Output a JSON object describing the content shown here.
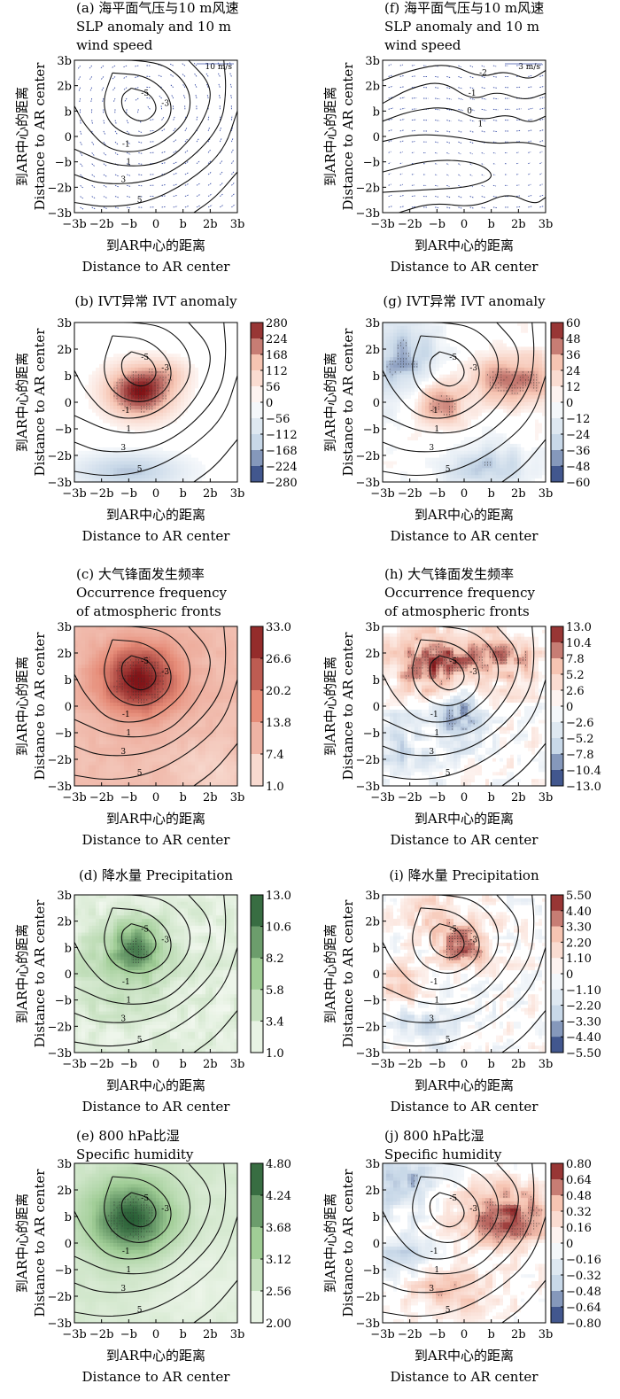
{
  "chart_data": [
    {
      "type": "contour",
      "title": [
        "(a) 海平面气压与10 m风速",
        "SLP anomaly and 10 m",
        "wind speed"
      ],
      "xlabel": [
        "到AR中心的距离",
        "Distance to AR center"
      ],
      "ylabel": [
        "到AR中心的距离",
        "Distance to AR center"
      ],
      "x_ticks": [
        "−3b",
        "−2b",
        "−b",
        "0",
        "b",
        "2b",
        "3b"
      ],
      "y_ticks": [
        "3b",
        "2b",
        "b",
        "0",
        "−b",
        "−2b",
        "−3b"
      ],
      "vector_reference": "10 m/s",
      "contour_labels": [
        "-5",
        "-3",
        "-1",
        "1",
        "3",
        "5"
      ],
      "colorbar": null
    },
    {
      "type": "contour",
      "title": [
        "(f) 海平面气压与10 m风速",
        "SLP anomaly and 10 m",
        "wind speed"
      ],
      "xlabel": [
        "到AR中心的距离",
        "Distance to AR center"
      ],
      "ylabel": [
        "到AR中心的距离",
        "Distance to AR center"
      ],
      "x_ticks": [
        "−3b",
        "−2b",
        "−b",
        "0",
        "b",
        "2b",
        "3b"
      ],
      "y_ticks": [
        "3b",
        "2b",
        "b",
        "0",
        "−b",
        "−2b",
        "−3b"
      ],
      "vector_reference": "3 m/s",
      "contour_labels": [
        "-2",
        "-1",
        "0",
        "1"
      ],
      "colorbar": null
    },
    {
      "type": "heatmap",
      "title": [
        "(b) IVT异常 IVT anomaly"
      ],
      "xlabel": [
        "到AR中心的距离",
        "Distance to AR center"
      ],
      "ylabel": [
        "到AR中心的距离",
        "Distance to AR center"
      ],
      "x_ticks": [
        "−3b",
        "−2b",
        "−b",
        "0",
        "b",
        "2b",
        "3b"
      ],
      "y_ticks": [
        "3b",
        "2b",
        "b",
        "0",
        "−b",
        "−2b",
        "−3b"
      ],
      "contour_labels": [
        "-5",
        "-3",
        "-1",
        "1",
        "3",
        "5"
      ],
      "colorbar": {
        "palette": "diverging",
        "range": [
          -280,
          280
        ],
        "ticks": [
          "280",
          "224",
          "168",
          "112",
          "56",
          "0",
          "−56",
          "−112",
          "−168",
          "−224",
          "−280"
        ]
      }
    },
    {
      "type": "heatmap",
      "title": [
        "(g) IVT异常 IVT anomaly"
      ],
      "xlabel": [
        "到AR中心的距离",
        "Distance to AR center"
      ],
      "ylabel": [
        "到AR中心的距离",
        "Distance to AR center"
      ],
      "x_ticks": [
        "−3b",
        "−2b",
        "−b",
        "0",
        "b",
        "2b",
        "3b"
      ],
      "y_ticks": [
        "3b",
        "2b",
        "b",
        "0",
        "−b",
        "−2b",
        "−3b"
      ],
      "contour_labels": [
        "-5",
        "-3",
        "-1",
        "1",
        "3",
        "5"
      ],
      "colorbar": {
        "palette": "diverging",
        "range": [
          -60,
          60
        ],
        "ticks": [
          "60",
          "48",
          "36",
          "24",
          "12",
          "0",
          "−12",
          "−24",
          "−36",
          "−48",
          "−60"
        ]
      }
    },
    {
      "type": "heatmap",
      "title": [
        "(c) 大气锋面发生频率",
        "Occurrence frequency",
        "of atmospheric fronts"
      ],
      "xlabel": [
        "到AR中心的距离",
        "Distance to AR center"
      ],
      "ylabel": [
        "到AR中心的距离",
        "Distance to AR center"
      ],
      "x_ticks": [
        "−3b",
        "−2b",
        "−b",
        "0",
        "b",
        "2b",
        "3b"
      ],
      "y_ticks": [
        "3b",
        "2b",
        "b",
        "0",
        "−b",
        "−2b",
        "−3b"
      ],
      "contour_labels": [
        "-5",
        "-3",
        "-1",
        "1",
        "3",
        "5"
      ],
      "colorbar": {
        "palette": "reds",
        "range": [
          1.0,
          33.0
        ],
        "ticks": [
          "33.0",
          "26.6",
          "20.2",
          "13.8",
          "7.4",
          "1.0"
        ]
      }
    },
    {
      "type": "heatmap",
      "title": [
        "(h) 大气锋面发生频率",
        "Occurrence frequency",
        "of atmospheric fronts"
      ],
      "xlabel": [
        "到AR中心的距离",
        "Distance to AR center"
      ],
      "ylabel": [
        "到AR中心的距离",
        "Distance to AR center"
      ],
      "x_ticks": [
        "−3b",
        "−2b",
        "−b",
        "0",
        "b",
        "2b",
        "3b"
      ],
      "y_ticks": [
        "3b",
        "2b",
        "b",
        "0",
        "−b",
        "−2b",
        "−3b"
      ],
      "contour_labels": [
        "-5",
        "-3",
        "-1",
        "1",
        "3",
        "5"
      ],
      "colorbar": {
        "palette": "diverging",
        "range": [
          -13.0,
          13.0
        ],
        "ticks": [
          "13.0",
          "10.4",
          "7.8",
          "5.2",
          "2.6",
          "0",
          "−2.6",
          "−5.2",
          "−7.8",
          "−10.4",
          "−13.0"
        ]
      }
    },
    {
      "type": "heatmap",
      "title": [
        "(d) 降水量 Precipitation"
      ],
      "xlabel": [
        "到AR中心的距离",
        "Distance to AR center"
      ],
      "ylabel": [
        "到AR中心的距离",
        "Distance to AR center"
      ],
      "x_ticks": [
        "−3b",
        "−2b",
        "−b",
        "0",
        "b",
        "2b",
        "3b"
      ],
      "y_ticks": [
        "3b",
        "2b",
        "b",
        "0",
        "−b",
        "−2b",
        "−3b"
      ],
      "contour_labels": [
        "-5",
        "-3",
        "-1",
        "1",
        "3",
        "5"
      ],
      "colorbar": {
        "palette": "greens",
        "range": [
          1.0,
          13.0
        ],
        "ticks": [
          "13.0",
          "10.6",
          "8.2",
          "5.8",
          "3.4",
          "1.0"
        ]
      }
    },
    {
      "type": "heatmap",
      "title": [
        "(i) 降水量 Precipitation"
      ],
      "xlabel": [
        "到AR中心的距离",
        "Distance to AR center"
      ],
      "ylabel": [
        "到AR中心的距离",
        "Distance to AR center"
      ],
      "x_ticks": [
        "−3b",
        "−2b",
        "−b",
        "0",
        "b",
        "2b",
        "3b"
      ],
      "y_ticks": [
        "3b",
        "2b",
        "b",
        "0",
        "−b",
        "−2b",
        "−3b"
      ],
      "contour_labels": [
        "-5",
        "-3",
        "-1",
        "1",
        "3",
        "5"
      ],
      "colorbar": {
        "palette": "diverging",
        "range": [
          -5.5,
          5.5
        ],
        "ticks": [
          "5.50",
          "4.40",
          "3.30",
          "2.20",
          "1.10",
          "0",
          "−1.10",
          "−2.20",
          "−3.30",
          "−4.40",
          "−5.50"
        ]
      }
    },
    {
      "type": "heatmap",
      "title": [
        "(e) 800 hPa比湿",
        "Specific humidity"
      ],
      "xlabel": [
        "到AR中心的距离",
        "Distance to AR center"
      ],
      "ylabel": [
        "到AR中心的距离",
        "Distance to AR center"
      ],
      "x_ticks": [
        "−3b",
        "−2b",
        "−b",
        "0",
        "b",
        "2b",
        "3b"
      ],
      "y_ticks": [
        "3b",
        "2b",
        "b",
        "0",
        "−b",
        "−2b",
        "−3b"
      ],
      "contour_labels": [
        "-5",
        "-3",
        "-1",
        "1",
        "3",
        "5"
      ],
      "colorbar": {
        "palette": "greens",
        "range": [
          2.0,
          4.8
        ],
        "ticks": [
          "4.80",
          "4.24",
          "3.68",
          "3.12",
          "2.56",
          "2.00"
        ]
      }
    },
    {
      "type": "heatmap",
      "title": [
        "(j) 800 hPa比湿",
        "Specific humidity"
      ],
      "xlabel": [
        "到AR中心的距离",
        "Distance to AR center"
      ],
      "ylabel": [
        "到AR中心的距离",
        "Distance to AR center"
      ],
      "x_ticks": [
        "−3b",
        "−2b",
        "−b",
        "0",
        "b",
        "2b",
        "3b"
      ],
      "y_ticks": [
        "3b",
        "2b",
        "b",
        "0",
        "−b",
        "−2b",
        "−3b"
      ],
      "contour_labels": [
        "-5",
        "-3",
        "-1",
        "1",
        "3",
        "5"
      ],
      "colorbar": {
        "palette": "diverging",
        "range": [
          -0.8,
          0.8
        ],
        "ticks": [
          "0.80",
          "0.64",
          "0.48",
          "0.32",
          "0.16",
          "0",
          "−0.16",
          "−0.32",
          "−0.48",
          "−0.64",
          "−0.80"
        ]
      }
    }
  ]
}
